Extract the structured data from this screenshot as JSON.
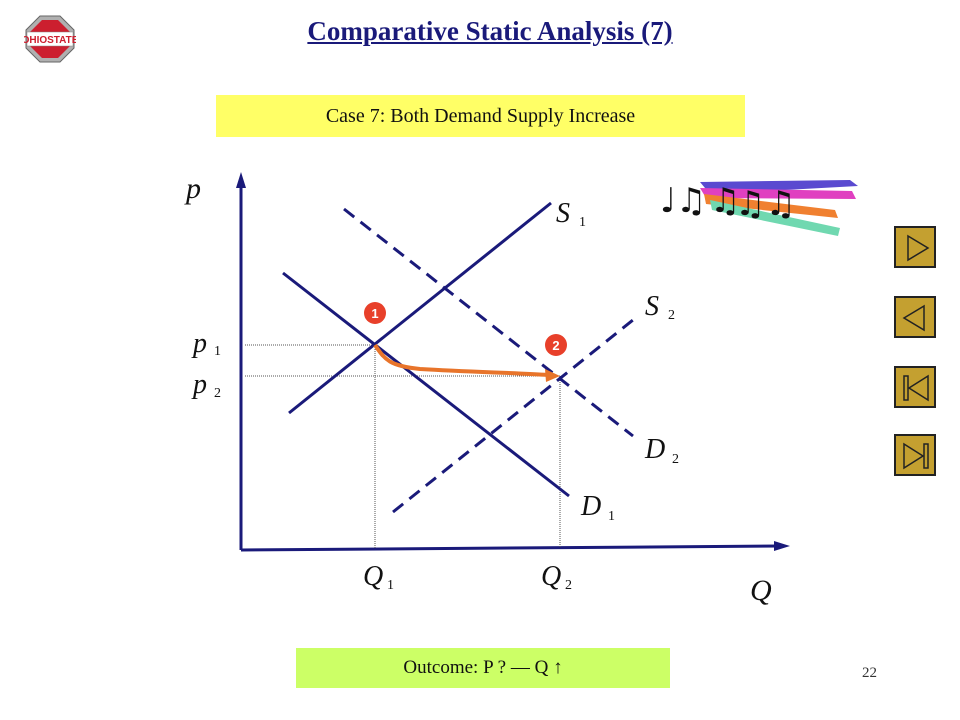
{
  "slide": {
    "title": "Comparative Static Analysis (7)",
    "logo_text": "OHIO STATE",
    "case_label": "Case 7: Both Demand Supply Increase",
    "outcome_label": "Outcome:   P ? — Q  ↑",
    "page_number": "22"
  },
  "graph": {
    "y_axis_label": "p",
    "x_axis_label": "Q",
    "curves": {
      "s1": {
        "name": "S",
        "sub": "1"
      },
      "s2": {
        "name": "S",
        "sub": "2"
      },
      "d1": {
        "name": "D",
        "sub": "1"
      },
      "d2": {
        "name": "D",
        "sub": "2"
      }
    },
    "price_ticks": {
      "p1": {
        "name": "p",
        "sub": "1"
      },
      "p2": {
        "name": "p",
        "sub": "2"
      }
    },
    "quantity_ticks": {
      "q1": {
        "name": "Q",
        "sub": "1"
      },
      "q2": {
        "name": "Q",
        "sub": "2"
      }
    },
    "equilibria": [
      {
        "label": "1"
      },
      {
        "label": "2"
      }
    ],
    "colors": {
      "curve": "#1a1a7a",
      "arrow": "#e8742a",
      "marker": "#e8402a"
    }
  },
  "nav": {
    "buttons": [
      {
        "name": "next-slide-button",
        "icon": "play-right-icon"
      },
      {
        "name": "previous-slide-button",
        "icon": "play-left-icon"
      },
      {
        "name": "first-slide-button",
        "icon": "skip-first-icon"
      },
      {
        "name": "last-slide-button",
        "icon": "skip-last-icon"
      }
    ]
  },
  "decoration": {
    "music_icon": "music-notes-icon"
  }
}
